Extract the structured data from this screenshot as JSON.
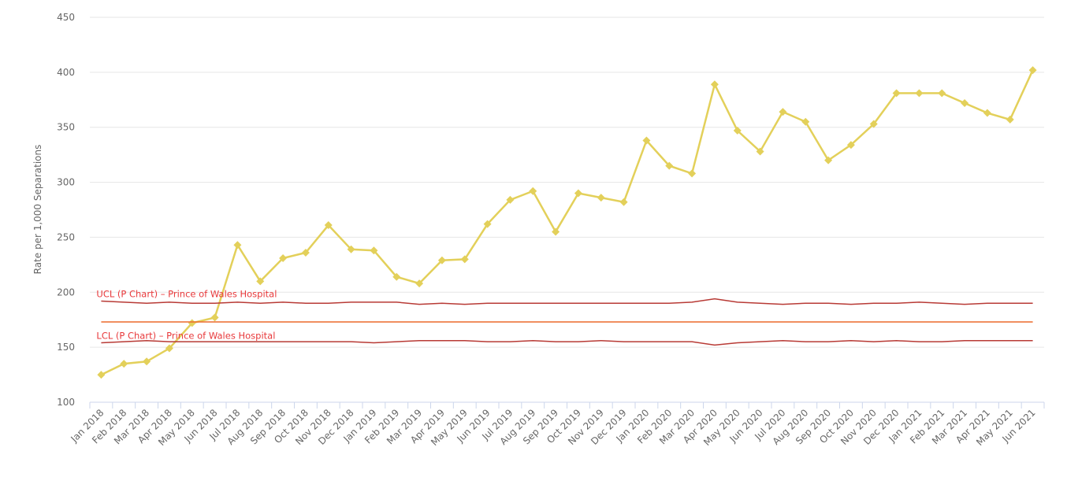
{
  "chart_data": {
    "type": "line",
    "y_label": "Rate per 1,000 Separations",
    "categories": [
      "Jan 2018",
      "Feb 2018",
      "Mar 2018",
      "Apr 2018",
      "May 2018",
      "Jun 2018",
      "Jul 2018",
      "Aug 2018",
      "Sep 2018",
      "Oct 2018",
      "Nov 2018",
      "Dec 2018",
      "Jan 2019",
      "Feb 2019",
      "Mar 2019",
      "Apr 2019",
      "May 2019",
      "Jun 2019",
      "Jul 2019",
      "Aug 2019",
      "Sep 2019",
      "Oct 2019",
      "Nov 2019",
      "Dec 2019",
      "Jan 2020",
      "Feb 2020",
      "Mar 2020",
      "Apr 2020",
      "May 2020",
      "Jun 2020",
      "Jul 2020",
      "Aug 2020",
      "Sep 2020",
      "Oct 2020",
      "Nov 2020",
      "Dec 2020",
      "Jan 2021",
      "Feb 2021",
      "Mar 2021",
      "Apr 2021",
      "May 2021",
      "Jun 2021"
    ],
    "ylim": [
      100,
      450
    ],
    "yticks": [
      100,
      150,
      200,
      250,
      300,
      350,
      400,
      450
    ],
    "grid": true,
    "series": [
      {
        "color": "#e3d05a",
        "marker": "diamond",
        "values": [
          125,
          135,
          137,
          149,
          172,
          177,
          243,
          210,
          231,
          236,
          261,
          239,
          238,
          214,
          208,
          229,
          230,
          262,
          284,
          292,
          255,
          290,
          286,
          282,
          338,
          315,
          308,
          389,
          347,
          328,
          364,
          355,
          320,
          334,
          353,
          381,
          381,
          381,
          372,
          363,
          357,
          402
        ]
      },
      {
        "name": "UCL (P Chart) – Prince of Wales Hospital",
        "color": "#b83a35",
        "values": [
          192,
          191,
          190,
          191,
          190,
          190,
          191,
          190,
          191,
          190,
          190,
          191,
          191,
          191,
          189,
          190,
          189,
          190,
          190,
          190,
          190,
          190,
          190,
          190,
          190,
          190,
          191,
          194,
          191,
          190,
          189,
          190,
          190,
          189,
          190,
          190,
          191,
          190,
          189,
          190,
          190,
          190
        ]
      },
      {
        "color": "#ec6a2c",
        "values": [
          173,
          173,
          173,
          173,
          173,
          173,
          173,
          173,
          173,
          173,
          173,
          173,
          173,
          173,
          173,
          173,
          173,
          173,
          173,
          173,
          173,
          173,
          173,
          173,
          173,
          173,
          173,
          173,
          173,
          173,
          173,
          173,
          173,
          173,
          173,
          173,
          173,
          173,
          173,
          173,
          173,
          173
        ]
      },
      {
        "name": "LCL (P Chart) – Prince of Wales Hospital",
        "color": "#b83a35",
        "values": [
          154,
          155,
          156,
          155,
          155,
          155,
          155,
          155,
          155,
          155,
          155,
          155,
          154,
          155,
          156,
          156,
          156,
          155,
          155,
          156,
          155,
          155,
          156,
          155,
          155,
          155,
          155,
          152,
          154,
          155,
          156,
          155,
          155,
          156,
          155,
          156,
          155,
          155,
          156,
          156,
          156,
          156
        ]
      }
    ]
  }
}
